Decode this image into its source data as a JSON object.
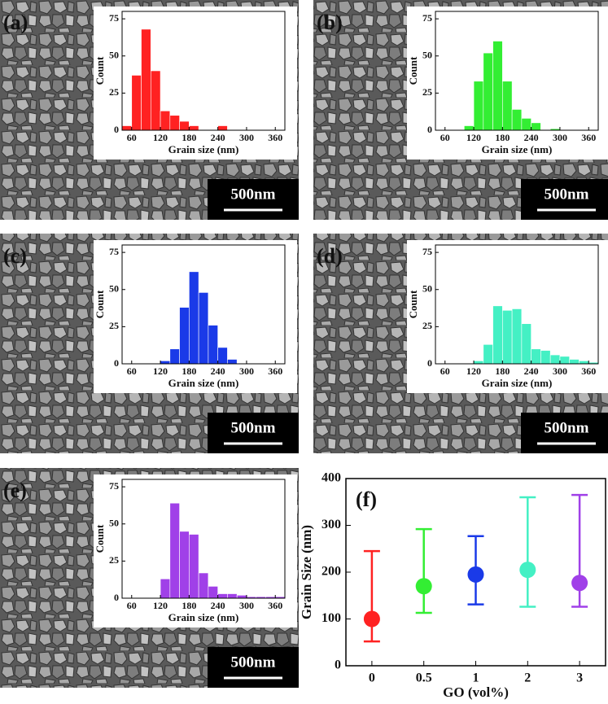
{
  "chart_data": [
    {
      "type": "histogram",
      "panel_label": "(a)",
      "scale_bar": "500nm",
      "xlabel": "Grain size (nm)",
      "ylabel": "Count",
      "color": "#ff2222",
      "bins": [
        40,
        60,
        80,
        100,
        120,
        140,
        160,
        180,
        200,
        220,
        240,
        260
      ],
      "counts": [
        3,
        37,
        68,
        40,
        13,
        10,
        6,
        3,
        0,
        0,
        3
      ],
      "xlim": [
        40,
        380
      ],
      "xticks": [
        60,
        120,
        180,
        240,
        300,
        360
      ],
      "ylim": [
        0,
        80
      ],
      "yticks": [
        0,
        25,
        50,
        75
      ]
    },
    {
      "type": "histogram",
      "panel_label": "(b)",
      "scale_bar": "500nm",
      "xlabel": "Grain size (nm)",
      "ylabel": "Count",
      "color": "#33ee33",
      "bins": [
        100,
        120,
        140,
        160,
        180,
        200,
        220,
        240,
        260,
        280,
        300
      ],
      "counts": [
        3,
        33,
        52,
        60,
        33,
        14,
        8,
        5,
        0,
        1
      ],
      "xlim": [
        40,
        380
      ],
      "xticks": [
        60,
        120,
        180,
        240,
        300,
        360
      ],
      "ylim": [
        0,
        80
      ],
      "yticks": [
        0,
        25,
        50,
        75
      ]
    },
    {
      "type": "histogram",
      "panel_label": "(c)",
      "scale_bar": "500nm",
      "xlabel": "Grain size (nm)",
      "ylabel": "Count",
      "color": "#1a3ae8",
      "bins": [
        120,
        140,
        160,
        180,
        200,
        220,
        240,
        260,
        280
      ],
      "counts": [
        2,
        10,
        38,
        62,
        48,
        26,
        11,
        3
      ],
      "xlim": [
        40,
        380
      ],
      "xticks": [
        60,
        120,
        180,
        240,
        300,
        360
      ],
      "ylim": [
        0,
        80
      ],
      "yticks": [
        0,
        25,
        50,
        75
      ]
    },
    {
      "type": "histogram",
      "panel_label": "(d)",
      "scale_bar": "500nm",
      "xlabel": "Grain size (nm)",
      "ylabel": "Count",
      "color": "#44f0c4",
      "bins": [
        120,
        140,
        160,
        180,
        200,
        220,
        240,
        260,
        280,
        300,
        320,
        340,
        360,
        380
      ],
      "counts": [
        2,
        13,
        39,
        36,
        37,
        27,
        10,
        9,
        6,
        5,
        3,
        2,
        1
      ],
      "xlim": [
        40,
        380
      ],
      "xticks": [
        60,
        120,
        180,
        240,
        300,
        360
      ],
      "ylim": [
        0,
        80
      ],
      "yticks": [
        0,
        25,
        50,
        75
      ]
    },
    {
      "type": "histogram",
      "panel_label": "(e)",
      "scale_bar": "500nm",
      "xlabel": "Grain size (nm)",
      "ylabel": "Count",
      "color": "#a040e8",
      "bins": [
        120,
        140,
        160,
        180,
        200,
        220,
        240,
        260,
        280,
        300,
        320,
        340,
        360,
        380
      ],
      "counts": [
        13,
        64,
        45,
        43,
        17,
        8,
        3,
        3,
        2,
        1,
        1,
        1,
        1
      ],
      "xlim": [
        40,
        380
      ],
      "xticks": [
        60,
        120,
        180,
        240,
        300,
        360
      ],
      "ylim": [
        0,
        80
      ],
      "yticks": [
        0,
        25,
        50,
        75
      ]
    },
    {
      "type": "errorbar",
      "panel_label": "(f)",
      "xlabel": "GO (vol%)",
      "ylabel": "Grain Size (nm)",
      "categories": [
        "0",
        "0.5",
        "1",
        "2",
        "3"
      ],
      "values": [
        100,
        170,
        195,
        205,
        177
      ],
      "low": [
        52,
        113,
        131,
        126,
        126
      ],
      "high": [
        245,
        292,
        277,
        360,
        365
      ],
      "colors": [
        "#ff2222",
        "#33ee33",
        "#1a3ae8",
        "#44f0c4",
        "#a040e8"
      ],
      "ylim": [
        0,
        400
      ],
      "yticks": [
        0,
        100,
        200,
        300,
        400
      ]
    }
  ]
}
